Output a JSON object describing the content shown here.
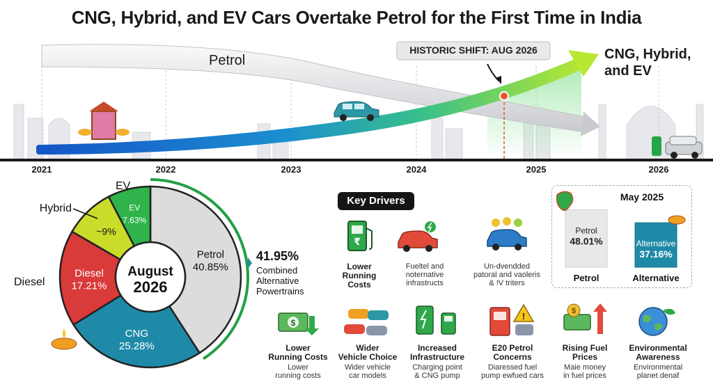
{
  "title": "CNG, Hybrid, and EV Cars Overtake Petrol for the First Time in India",
  "timeline": {
    "years": [
      "2021",
      "2022",
      "2023",
      "2024",
      "2025",
      "2026"
    ],
    "petrol_label": "Petrol",
    "alt_label_line1": "CNG, Hybrid,",
    "alt_label_line2": "and EV",
    "callout": "HISTORIC SHIFT: AUG 2026"
  },
  "chart_data": [
    {
      "type": "pie",
      "title": "",
      "center_label_line1": "August",
      "center_label_line2": "2026",
      "slices": [
        {
          "name": "Petrol",
          "label": "Petrol",
          "value": 40.85,
          "value_text": "40.85%",
          "color": "#dcdcdc"
        },
        {
          "name": "CNG",
          "label": "CNG",
          "value": 25.28,
          "value_text": "25.28%",
          "color": "#1f8aa8"
        },
        {
          "name": "Diesel",
          "label": "Diesel",
          "value": 17.21,
          "value_text": "17.21%",
          "color": "#d93a3a"
        },
        {
          "name": "Hybrid",
          "label": "Hybrid",
          "value": 9,
          "value_text": "~9%",
          "color": "#c9dc2a"
        },
        {
          "name": "EV",
          "label": "EV",
          "value": 7.63,
          "value_text": "7.63%",
          "color": "#2fb34a"
        }
      ],
      "combined_value": "41.95%",
      "combined_label_line1": "Combined",
      "combined_label_line2": "Alternative",
      "combined_label_line3": "Powertrains"
    },
    {
      "type": "bar",
      "title": "May 2025",
      "categories": [
        "Petrol",
        "Alternative"
      ],
      "values": [
        48.01,
        37.16
      ],
      "value_texts": [
        "48.01%",
        "37.16%"
      ],
      "colors": [
        "#e8e8e8",
        "#1f8aa8"
      ]
    }
  ],
  "key_drivers": {
    "heading": "Key Drivers",
    "top": [
      {
        "title_line1": "Lower",
        "title_line2": "Running",
        "title_line3": "Costs",
        "sub_line1": "",
        "sub_line2": "",
        "icon": "fuel-pump-rupee-icon"
      },
      {
        "title_line1": "",
        "title_line2": "",
        "title_line3": "",
        "sub_line1": "Fueltel and",
        "sub_line2": "noternative",
        "sub_line3": "infrastructs",
        "icon": "electric-car-icon"
      },
      {
        "title_line1": "",
        "title_line2": "",
        "title_line3": "",
        "sub_line1": "Un-dvendded",
        "sub_line2": "patoral and vaoleris",
        "sub_line3": "& !V triters",
        "icon": "car-coins-icon"
      }
    ],
    "bottom": [
      {
        "title_line1": "Lower",
        "title_line2": "Running Costs",
        "sub_line1": "Lower",
        "sub_line2": "running costs",
        "icon": "money-icon"
      },
      {
        "title_line1": "Wider",
        "title_line2": "Vehicle Choice",
        "sub_line1": "Wider vehicle",
        "sub_line2": "car models",
        "icon": "cars-icon"
      },
      {
        "title_line1": "Increased",
        "title_line2": "Infrastructure",
        "sub_line1": "Charging point",
        "sub_line2": "& CNG pump",
        "icon": "charging-station-icon"
      },
      {
        "title_line1": "E20 Petrol",
        "title_line2": "Concerns",
        "sub_line1": "Diaressed fuel",
        "sub_line2": "pump ewfued cars",
        "icon": "warning-pump-icon"
      },
      {
        "title_line1": "Rising Fuel",
        "title_line2": "Prices",
        "sub_line1": "Maie money",
        "sub_line2": "in fuel prices",
        "icon": "rising-price-icon"
      },
      {
        "title_line1": "Environmental",
        "title_line2": "Awareness",
        "sub_line1": "Environmental",
        "sub_line2": "planet denaf",
        "icon": "globe-leaf-icon"
      }
    ]
  }
}
